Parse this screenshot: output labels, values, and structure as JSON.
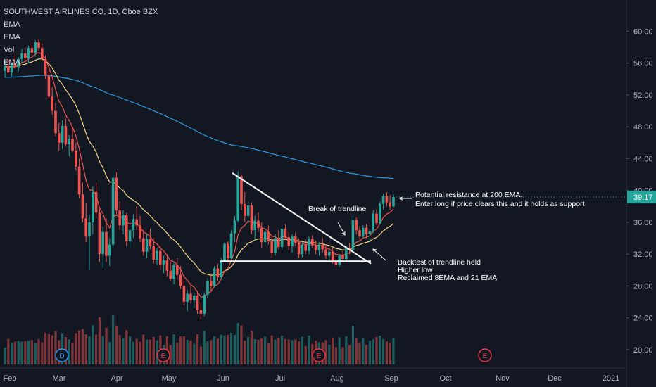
{
  "legend": {
    "title": "SOUTHWEST AIRLINES CO, 1D, Cboe BZX",
    "ind1": "EMA",
    "ind2": "EMA",
    "ind3": "Vol",
    "ind4": "EMA"
  },
  "chart_data": {
    "type": "candlestick",
    "symbol": "SOUTHWEST AIRLINES CO, 1D, Cboe BZX",
    "ylim": [
      18.4,
      62.6
    ],
    "y_ticks": [
      "60.00",
      "56.00",
      "52.00",
      "48.00",
      "44.00",
      "40.00",
      "36.00",
      "32.00",
      "28.00",
      "24.00",
      "20.00"
    ],
    "x_ticks": [
      "Feb",
      "Mar",
      "Apr",
      "May",
      "Jun",
      "Jul",
      "Aug",
      "Sep",
      "Oct",
      "Nov",
      "Dec",
      "2021"
    ],
    "last_price": "39.17",
    "up_color": "#26a69a",
    "down_color": "#ef5350",
    "candles_ohlc_daily": [
      [
        55.0,
        56.4,
        54.2,
        55.6
      ],
      [
        55.6,
        56.5,
        54.8,
        54.8
      ],
      [
        54.8,
        56.0,
        54.3,
        55.9
      ],
      [
        55.9,
        57.0,
        55.3,
        55.5
      ],
      [
        55.5,
        56.8,
        55.0,
        56.5
      ],
      [
        56.5,
        57.8,
        56.0,
        57.2
      ],
      [
        57.2,
        58.0,
        56.3,
        56.6
      ],
      [
        56.6,
        58.2,
        56.0,
        57.9
      ],
      [
        57.9,
        58.6,
        57.0,
        57.3
      ],
      [
        57.3,
        58.9,
        56.8,
        58.6
      ],
      [
        58.6,
        59.0,
        57.5,
        57.9
      ],
      [
        57.9,
        58.5,
        56.2,
        56.5
      ],
      [
        56.5,
        57.0,
        54.0,
        54.4
      ],
      [
        54.4,
        55.0,
        51.5,
        51.8
      ],
      [
        51.8,
        53.0,
        49.5,
        50.0
      ],
      [
        50.0,
        51.0,
        46.8,
        47.2
      ],
      [
        47.2,
        48.5,
        45.0,
        46.0
      ],
      [
        46.0,
        48.8,
        45.2,
        48.1
      ],
      [
        48.1,
        49.0,
        45.5,
        45.8
      ],
      [
        45.8,
        47.0,
        44.3,
        46.5
      ],
      [
        46.5,
        48.0,
        44.8,
        45.0
      ],
      [
        45.0,
        46.0,
        42.5,
        43.0
      ],
      [
        43.0,
        44.0,
        39.0,
        39.5
      ],
      [
        39.5,
        41.0,
        36.0,
        36.5
      ],
      [
        36.5,
        38.5,
        33.5,
        34.2
      ],
      [
        34.2,
        37.0,
        30.0,
        36.0
      ],
      [
        36.0,
        40.5,
        34.5,
        39.8
      ],
      [
        39.8,
        41.0,
        36.5,
        37.2
      ],
      [
        37.2,
        38.0,
        31.0,
        32.0
      ],
      [
        32.0,
        35.5,
        30.2,
        34.8
      ],
      [
        34.8,
        36.5,
        31.0,
        31.8
      ],
      [
        31.8,
        34.0,
        30.5,
        33.2
      ],
      [
        33.2,
        42.5,
        32.8,
        41.6
      ],
      [
        41.6,
        42.3,
        36.8,
        37.5
      ],
      [
        37.5,
        38.6,
        35.0,
        35.6
      ],
      [
        35.6,
        37.5,
        34.5,
        36.9
      ],
      [
        36.9,
        37.2,
        33.0,
        33.6
      ],
      [
        33.6,
        35.5,
        32.8,
        35.0
      ],
      [
        35.0,
        37.0,
        34.0,
        36.4
      ],
      [
        36.4,
        38.0,
        35.0,
        35.6
      ],
      [
        35.6,
        36.8,
        33.5,
        34.0
      ],
      [
        34.0,
        35.0,
        31.8,
        32.3
      ],
      [
        32.3,
        34.5,
        31.5,
        33.9
      ],
      [
        33.9,
        35.2,
        32.6,
        33.0
      ],
      [
        33.0,
        34.0,
        30.8,
        31.3
      ],
      [
        31.3,
        32.8,
        30.6,
        32.4
      ],
      [
        32.4,
        33.0,
        30.0,
        30.7
      ],
      [
        30.7,
        31.8,
        29.6,
        31.2
      ],
      [
        31.2,
        32.0,
        29.2,
        29.9
      ],
      [
        29.9,
        31.0,
        28.6,
        28.9
      ],
      [
        28.9,
        31.0,
        28.2,
        30.6
      ],
      [
        30.6,
        31.5,
        28.8,
        29.4
      ],
      [
        29.4,
        30.5,
        27.6,
        28.0
      ],
      [
        28.0,
        29.0,
        25.6,
        26.0
      ],
      [
        26.0,
        27.5,
        24.8,
        27.0
      ],
      [
        27.0,
        28.0,
        25.8,
        26.2
      ],
      [
        26.2,
        27.2,
        25.2,
        26.8
      ],
      [
        26.8,
        27.4,
        24.5,
        25.0
      ],
      [
        25.0,
        26.0,
        23.8,
        24.5
      ],
      [
        24.5,
        27.2,
        24.2,
        26.9
      ],
      [
        26.9,
        29.0,
        26.5,
        28.6
      ],
      [
        28.6,
        29.5,
        27.4,
        28.0
      ],
      [
        28.0,
        30.5,
        27.8,
        30.2
      ],
      [
        30.2,
        30.8,
        28.6,
        29.1
      ],
      [
        29.1,
        31.5,
        28.9,
        31.2
      ],
      [
        31.2,
        33.5,
        31.0,
        33.3
      ],
      [
        33.3,
        33.6,
        31.0,
        31.5
      ],
      [
        31.5,
        35.0,
        31.4,
        34.6
      ],
      [
        34.6,
        36.8,
        33.5,
        36.2
      ],
      [
        36.2,
        42.4,
        36.0,
        41.8
      ],
      [
        41.8,
        42.0,
        37.5,
        38.3
      ],
      [
        38.3,
        39.8,
        36.0,
        36.8
      ],
      [
        36.8,
        38.6,
        35.8,
        38.1
      ],
      [
        38.1,
        38.5,
        34.5,
        35.0
      ],
      [
        35.0,
        36.8,
        33.8,
        36.2
      ],
      [
        36.2,
        37.2,
        34.8,
        35.3
      ],
      [
        35.3,
        36.0,
        32.8,
        33.5
      ],
      [
        33.5,
        35.2,
        33.0,
        34.8
      ],
      [
        34.8,
        35.6,
        33.2,
        33.6
      ],
      [
        33.6,
        34.2,
        31.5,
        32.1
      ],
      [
        32.1,
        34.5,
        31.8,
        34.0
      ],
      [
        34.0,
        35.0,
        32.6,
        32.9
      ],
      [
        32.9,
        35.5,
        32.5,
        35.2
      ],
      [
        35.2,
        35.8,
        33.8,
        34.1
      ],
      [
        34.1,
        34.8,
        32.5,
        33.0
      ],
      [
        33.0,
        34.5,
        32.2,
        34.2
      ],
      [
        34.2,
        34.7,
        33.0,
        33.4
      ],
      [
        33.4,
        34.0,
        31.5,
        32.0
      ],
      [
        32.0,
        33.5,
        31.6,
        33.2
      ],
      [
        33.2,
        33.8,
        32.0,
        32.4
      ],
      [
        32.4,
        34.2,
        32.0,
        33.9
      ],
      [
        33.9,
        34.4,
        32.8,
        33.1
      ],
      [
        33.1,
        33.7,
        32.0,
        32.5
      ],
      [
        32.5,
        33.5,
        31.8,
        33.2
      ],
      [
        33.2,
        34.0,
        32.2,
        32.6
      ],
      [
        32.6,
        33.2,
        31.4,
        31.8
      ],
      [
        31.8,
        32.6,
        31.2,
        32.3
      ],
      [
        32.3,
        32.8,
        30.8,
        31.2
      ],
      [
        31.2,
        31.8,
        30.3,
        30.7
      ],
      [
        30.7,
        32.0,
        30.4,
        31.8
      ],
      [
        31.8,
        32.5,
        31.0,
        31.4
      ],
      [
        31.4,
        33.0,
        31.2,
        32.8
      ],
      [
        32.8,
        33.4,
        32.0,
        32.5
      ],
      [
        32.5,
        36.8,
        32.4,
        36.3
      ],
      [
        36.3,
        36.6,
        34.5,
        35.0
      ],
      [
        35.0,
        35.5,
        33.8,
        34.2
      ],
      [
        34.2,
        35.6,
        34.0,
        35.3
      ],
      [
        35.3,
        35.8,
        34.0,
        34.5
      ],
      [
        34.5,
        35.2,
        33.6,
        34.9
      ],
      [
        34.9,
        37.5,
        34.6,
        37.1
      ],
      [
        37.1,
        37.6,
        35.6,
        35.9
      ],
      [
        35.9,
        38.6,
        35.7,
        38.3
      ],
      [
        38.3,
        39.6,
        37.6,
        39.3
      ],
      [
        39.3,
        39.8,
        38.0,
        38.5
      ],
      [
        38.5,
        39.4,
        37.6,
        38.0
      ],
      [
        38.0,
        39.5,
        37.8,
        39.17
      ]
    ],
    "series": [
      {
        "name": "EMA",
        "color": "#ef5350"
      },
      {
        "name": "EMA",
        "color": "#f5d586"
      },
      {
        "name": "EMA",
        "color": "#2f9be0"
      },
      {
        "name": "Vol"
      }
    ],
    "event_markers": [
      {
        "label": "D",
        "color": "#2196f3",
        "near": "Feb"
      },
      {
        "label": "E",
        "color": "#f23645",
        "near": "Apr-May"
      },
      {
        "label": "E",
        "color": "#f23645",
        "near": "Jul-Aug"
      },
      {
        "label": "E",
        "color": "#f23645",
        "near": "Oct-Nov"
      }
    ],
    "annotations": [
      {
        "text": "Potential resistance at 200 EMA.",
        "price": 40.5
      },
      {
        "text": "Enter long if price clears this and it holds as support",
        "price": 39.5
      },
      {
        "text": "Break of trendline",
        "price": 37.0
      },
      {
        "text": "Backtest of trendline held",
        "price": 31.8
      },
      {
        "text": "Higher low",
        "price": 30.7
      },
      {
        "text": "Reclaimed 8EMA and 21 EMA",
        "price": 29.6
      }
    ],
    "drawings": [
      {
        "name": "descending-trendline",
        "from_price": 42.2,
        "from_date": "Jun",
        "to_price": 30.8,
        "to_date": "Aug"
      },
      {
        "name": "horizontal-support",
        "price": 31.1
      }
    ],
    "grid": false
  }
}
